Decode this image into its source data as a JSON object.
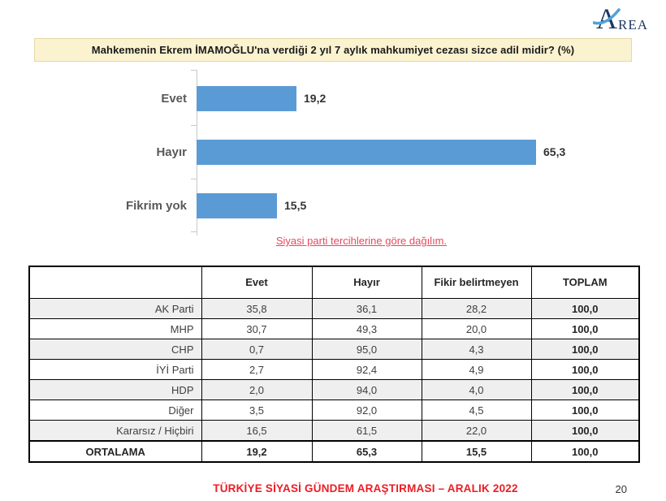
{
  "logo": {
    "letter": "A",
    "rest": "REA"
  },
  "title": "Mahkemenin Ekrem İMAMOĞLU'na verdiği 2 yıl 7 aylık mahkumiyet cezası sizce adil midir? (%)",
  "chart_data": {
    "type": "bar",
    "orientation": "horizontal",
    "categories": [
      "Evet",
      "Hayır",
      "Fikrim yok"
    ],
    "values": [
      19.2,
      65.3,
      15.5
    ],
    "value_labels": [
      "19,2",
      "65,3",
      "15,5"
    ],
    "xlim": [
      0,
      70
    ],
    "grid": false,
    "legend": "none",
    "bar_color": "#5B9BD5",
    "title": "",
    "xlabel": "",
    "ylabel": ""
  },
  "subtitle": "Siyasi parti tercihlerine göre dağılım.",
  "table": {
    "columns": [
      "",
      "Evet",
      "Hayır",
      "Fikir belirtmeyen",
      "TOPLAM"
    ],
    "rows": [
      {
        "cells": [
          "AK Parti",
          "35,8",
          "36,1",
          "28,2",
          "100,0"
        ],
        "emphasis": false
      },
      {
        "cells": [
          "MHP",
          "30,7",
          "49,3",
          "20,0",
          "100,0"
        ],
        "emphasis": false
      },
      {
        "cells": [
          "CHP",
          "0,7",
          "95,0",
          "4,3",
          "100,0"
        ],
        "emphasis": false
      },
      {
        "cells": [
          "İYİ Parti",
          "2,7",
          "92,4",
          "4,9",
          "100,0"
        ],
        "emphasis": false
      },
      {
        "cells": [
          "HDP",
          "2,0",
          "94,0",
          "4,0",
          "100,0"
        ],
        "emphasis": false
      },
      {
        "cells": [
          "Diğer",
          "3,5",
          "92,0",
          "4,5",
          "100,0"
        ],
        "emphasis": false
      },
      {
        "cells": [
          "Kararsız / Hiçbiri",
          "16,5",
          "61,5",
          "22,0",
          "100,0"
        ],
        "emphasis": false
      },
      {
        "cells": [
          "ORTALAMA",
          "19,2",
          "65,3",
          "15,5",
          "100,0"
        ],
        "emphasis": true
      }
    ]
  },
  "footer": {
    "text": "TÜRKİYE SİYASİ GÜNDEM ARAŞTIRMASI – ARALIK 2022",
    "page": "20"
  },
  "colors": {
    "bar_blue": "#5B9BD5",
    "title_bg": "#FBF2D0",
    "subtitle_red": "#E8485C",
    "footer_red": "#ED1C24",
    "zebra_gray": "#EFEFEF",
    "logo_navy": "#1F3864",
    "logo_swoosh_blue": "#4FA3D9"
  }
}
